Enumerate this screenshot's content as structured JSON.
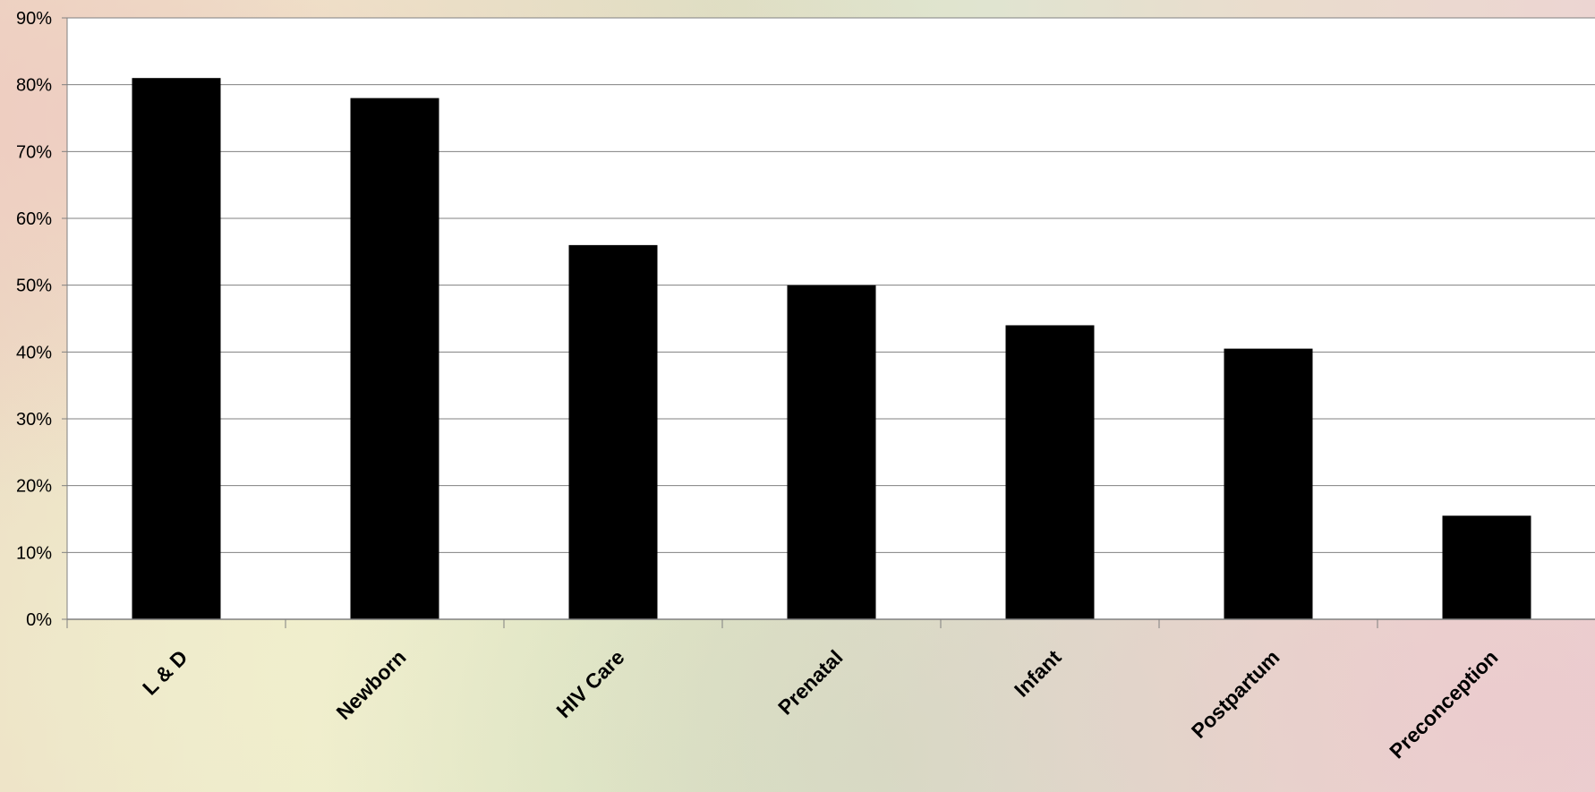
{
  "chart_data": {
    "type": "bar",
    "categories": [
      "L & D",
      "Newborn",
      "HIV Care",
      "Prenatal",
      "Infant",
      "Postpartum",
      "Preconception"
    ],
    "values": [
      81,
      78,
      56,
      50,
      44,
      40.5,
      15.5
    ],
    "y_ticks": [
      "0%",
      "10%",
      "20%",
      "30%",
      "40%",
      "50%",
      "60%",
      "70%",
      "80%",
      "90%"
    ],
    "ylim": [
      0,
      90
    ],
    "grid": true,
    "legend": "none",
    "colors": {
      "bar": "#000000",
      "plot_background": "#ffffff",
      "gridline": "#808080"
    }
  }
}
